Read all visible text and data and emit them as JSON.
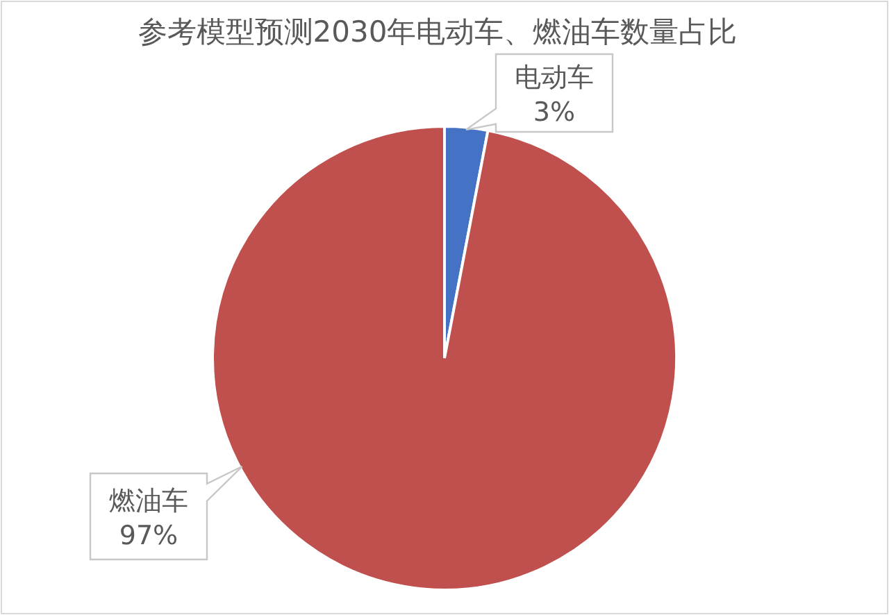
{
  "chart_data": {
    "type": "pie",
    "title": "参考模型预测2030年电动车、燃油车数量占比",
    "categories": [
      "电动车",
      "燃油车"
    ],
    "values": [
      3,
      97
    ],
    "colors": [
      "#4472c4",
      "#c0504d"
    ],
    "data_labels": true,
    "value_labels": [
      "3%",
      "97%"
    ]
  }
}
